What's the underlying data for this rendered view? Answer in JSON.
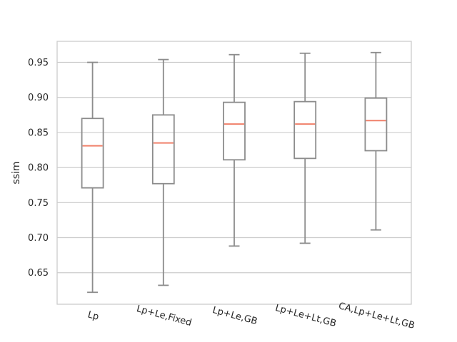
{
  "chart_data": {
    "type": "box",
    "title": "",
    "xlabel": "",
    "ylabel": "ssim",
    "ylim": [
      0.605,
      0.98
    ],
    "yticks": [
      0.65,
      0.7,
      0.75,
      0.8,
      0.85,
      0.9,
      0.95
    ],
    "ytick_labels": [
      "0.65",
      "0.70",
      "0.75",
      "0.80",
      "0.85",
      "0.90",
      "0.95"
    ],
    "grid": "horizontal",
    "categories": [
      "Lp",
      "Lp+Le,Fixed",
      "Lp+Le,GB",
      "Lp+Le+Lt,GB",
      "CA,Lp+Le+Lt,GB"
    ],
    "boxes": [
      {
        "whisker_low": 0.622,
        "q1": 0.771,
        "median": 0.831,
        "q3": 0.87,
        "whisker_high": 0.95
      },
      {
        "whisker_low": 0.632,
        "q1": 0.777,
        "median": 0.835,
        "q3": 0.875,
        "whisker_high": 0.954
      },
      {
        "whisker_low": 0.688,
        "q1": 0.811,
        "median": 0.862,
        "q3": 0.893,
        "whisker_high": 0.961
      },
      {
        "whisker_low": 0.692,
        "q1": 0.813,
        "median": 0.862,
        "q3": 0.894,
        "whisker_high": 0.963
      },
      {
        "whisker_low": 0.711,
        "q1": 0.824,
        "median": 0.867,
        "q3": 0.899,
        "whisker_high": 0.964
      }
    ],
    "colors": {
      "box": "#8c8c8c",
      "median": "#f0806a",
      "grid": "#cccccc",
      "frame": "#cccccc",
      "text": "#262626"
    }
  }
}
